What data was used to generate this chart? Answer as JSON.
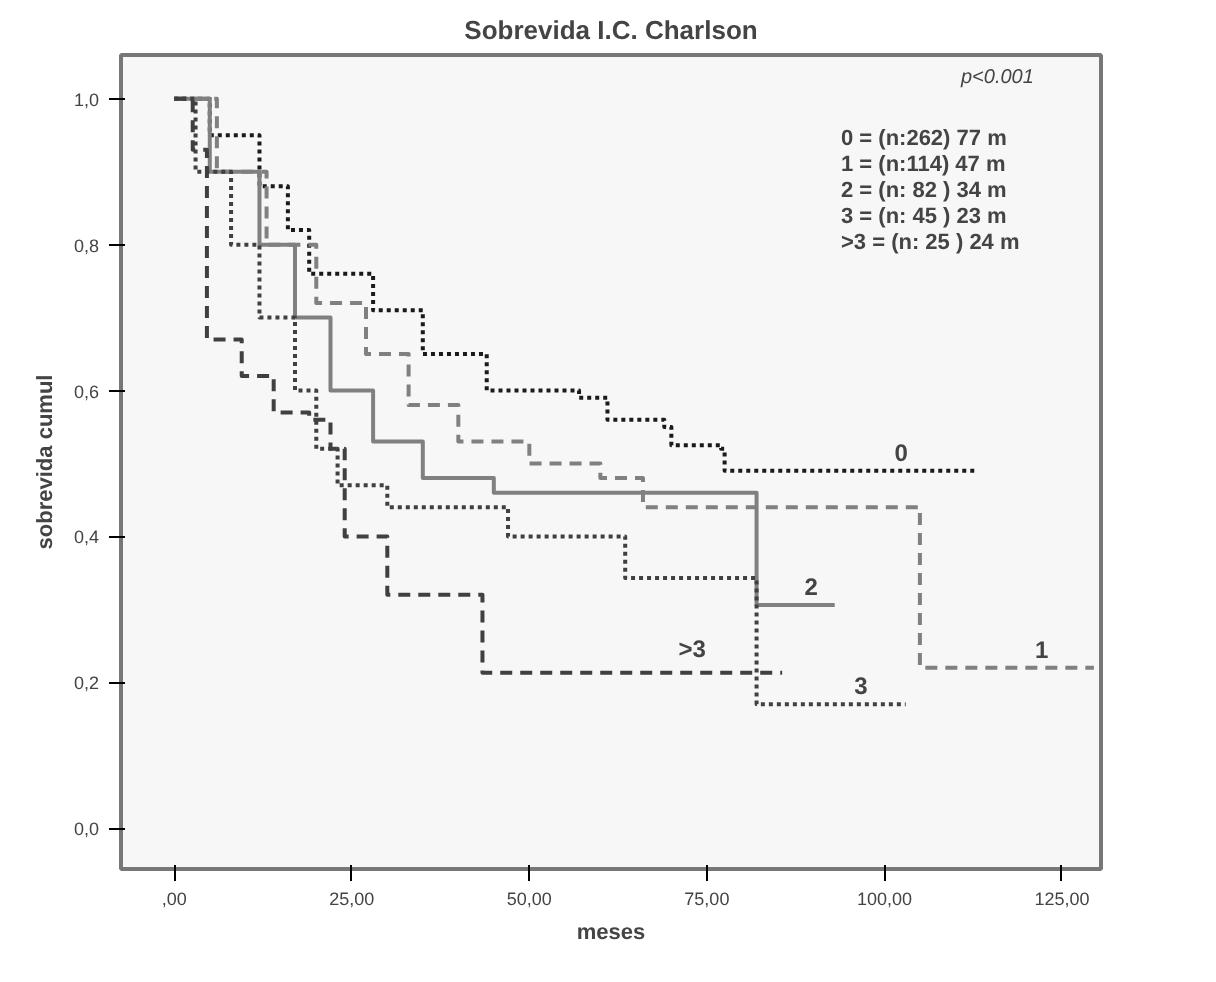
{
  "chart_data": {
    "type": "step",
    "title": "Sobrevida I.C. Charlson",
    "xlabel": "meses",
    "ylabel": "sobrevida cumul",
    "xlim": [
      -7.5,
      130.5
    ],
    "ylim": [
      -0.056,
      1.06
    ],
    "xticks": [
      {
        "value": 0,
        "label": ",00"
      },
      {
        "value": 25,
        "label": "25,00"
      },
      {
        "value": 50,
        "label": "50,00"
      },
      {
        "value": 75,
        "label": "75,00"
      },
      {
        "value": 100,
        "label": "100,00"
      },
      {
        "value": 125,
        "label": "125,00"
      }
    ],
    "yticks": [
      {
        "value": 0,
        "label": "0,0"
      },
      {
        "value": 0.2,
        "label": "0,2"
      },
      {
        "value": 0.4,
        "label": "0,4"
      },
      {
        "value": 0.6,
        "label": "0,6"
      },
      {
        "value": 0.8,
        "label": "0,8"
      },
      {
        "value": 1.0,
        "label": "1,0"
      }
    ],
    "grid": false,
    "legend": false,
    "annotations": [
      "p<0.001",
      "0  = (n:262) 77  m",
      "1  = (n:114) 47  m",
      "2  = (n: 82 ) 34  m",
      "3  = (n: 45 ) 23  m",
      ">3 = (n: 25 ) 24  m"
    ],
    "series": [
      {
        "name": "0",
        "color": "#1a1a1a",
        "line_style": "dotted",
        "x": [
          0,
          5,
          12,
          16,
          19,
          28,
          35,
          44,
          57,
          61,
          69,
          70,
          77,
          77.5,
          113
        ],
        "values": [
          1.0,
          0.95,
          0.88,
          0.82,
          0.76,
          0.71,
          0.65,
          0.6,
          0.59,
          0.56,
          0.55,
          0.525,
          0.52,
          0.49,
          0.49
        ]
      },
      {
        "name": "1",
        "color": "#808080",
        "line_style": "dashed",
        "x": [
          0,
          6,
          13,
          20,
          27,
          33,
          40,
          50,
          60,
          66,
          105,
          129.5
        ],
        "values": [
          1.0,
          0.9,
          0.8,
          0.72,
          0.65,
          0.58,
          0.53,
          0.5,
          0.48,
          0.44,
          0.22,
          0.22
        ]
      },
      {
        "name": "2",
        "color": "#808080",
        "line_style": "solid",
        "x": [
          0,
          5,
          12,
          17,
          22,
          28,
          35,
          45,
          82,
          93
        ],
        "values": [
          1.0,
          0.9,
          0.8,
          0.7,
          0.6,
          0.53,
          0.48,
          0.46,
          0.306,
          0.306
        ]
      },
      {
        "name": "3",
        "color": "#404040",
        "line_style": "dotted",
        "x": [
          0,
          3,
          8,
          12,
          17,
          20,
          23,
          30,
          47,
          63.5,
          82,
          103
        ],
        "values": [
          1.0,
          0.9,
          0.8,
          0.7,
          0.6,
          0.52,
          0.47,
          0.44,
          0.4,
          0.343,
          0.17,
          0.17
        ]
      },
      {
        "name": ">3",
        "color": "#404040",
        "line_style": "dashed",
        "x": [
          0,
          2.6,
          4.6,
          9.5,
          14,
          19,
          22,
          24,
          30,
          43.4,
          85.6
        ],
        "values": [
          1.0,
          0.93,
          0.67,
          0.62,
          0.57,
          0.56,
          0.52,
          0.4,
          0.32,
          0.213,
          0.213
        ]
      }
    ]
  }
}
